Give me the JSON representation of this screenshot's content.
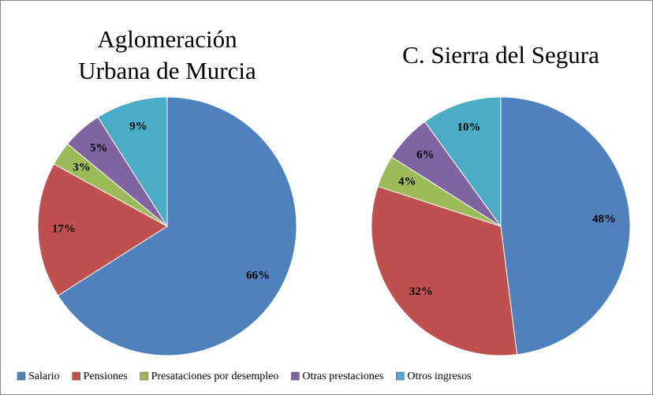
{
  "categories": [
    "Salario",
    "Pensiones",
    "Presataciones por desempleo",
    "Otras prestaciones",
    "Otros ingresos"
  ],
  "colors": [
    "#4f81bd",
    "#c0504d",
    "#9bbb59",
    "#8064a2",
    "#4bacc6"
  ],
  "chart_data": [
    {
      "type": "pie",
      "title": [
        "Aglomeración",
        "Urbana de Murcia"
      ],
      "values": [
        66,
        17,
        3,
        5,
        9
      ],
      "value_labels": [
        "66%",
        "17%",
        "3%",
        "5%",
        "9%"
      ]
    },
    {
      "type": "pie",
      "title": [
        "C. Sierra del Segura"
      ],
      "values": [
        48,
        32,
        4,
        6,
        10
      ],
      "value_labels": [
        "48%",
        "32%",
        "4%",
        "6%",
        "10%"
      ]
    }
  ]
}
